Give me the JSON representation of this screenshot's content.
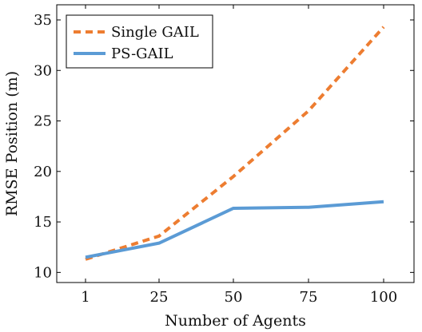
{
  "chart_data": {
    "type": "line",
    "x": [
      1,
      25,
      50,
      75,
      100
    ],
    "x_tick_labels": [
      "1",
      "25",
      "50",
      "75",
      "100"
    ],
    "xlabel": "Number of Agents",
    "ylabel": "RMSE Position (m)",
    "ylim": [
      9,
      36.5
    ],
    "y_ticks": [
      10,
      15,
      20,
      25,
      30,
      35
    ],
    "y_tick_labels": [
      "10",
      "15",
      "20",
      "25",
      "30",
      "35"
    ],
    "grid": false,
    "legend_position": "top-left",
    "series": [
      {
        "name": "Single GAIL",
        "values": [
          11.3,
          13.6,
          19.5,
          26.0,
          34.3
        ],
        "color": "#ED7D31",
        "style": "dashed"
      },
      {
        "name": "PS-GAIL",
        "values": [
          11.5,
          12.9,
          16.35,
          16.45,
          17.0
        ],
        "color": "#5B9BD5",
        "style": "solid"
      }
    ]
  }
}
